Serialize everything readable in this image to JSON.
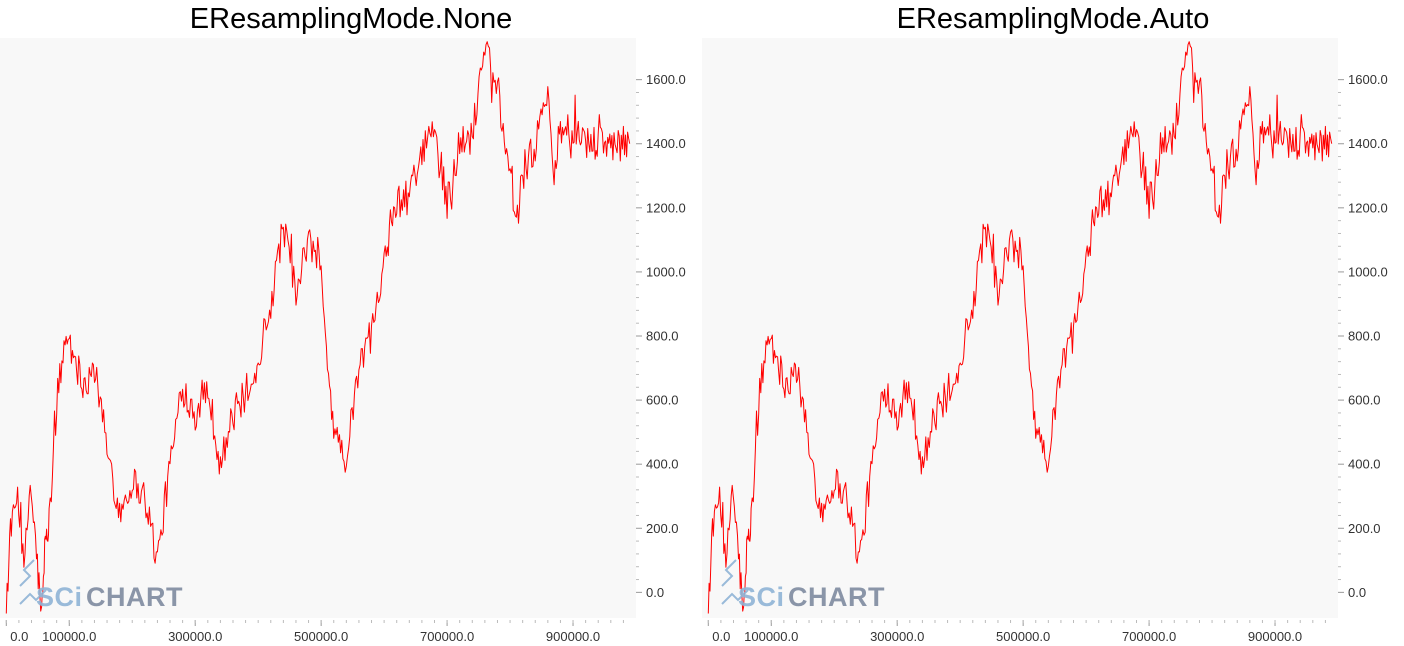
{
  "chart_data": [
    {
      "type": "line",
      "title": "EResamplingMode.None",
      "xlim": [
        -10000,
        1000000
      ],
      "ylim": [
        -80,
        1730
      ],
      "x_ticks": [
        "0.0",
        "100000.0",
        "300000.0",
        "500000.0",
        "700000.0",
        "900000.0"
      ],
      "x_tick_values": [
        0,
        100000,
        300000,
        500000,
        700000,
        900000
      ],
      "y_ticks": [
        "0.0",
        "200.0",
        "400.0",
        "600.0",
        "800.0",
        "1000.0",
        "1200.0",
        "1400.0",
        "1600.0"
      ],
      "y_tick_values": [
        0,
        200,
        400,
        600,
        800,
        1000,
        1200,
        1400,
        1600
      ],
      "series": [
        {
          "color": "#ff0000",
          "x": [
            0,
            8000,
            18000,
            28000,
            38000,
            48000,
            56000,
            62000,
            68000,
            80000,
            95000,
            110000,
            125000,
            140000,
            160000,
            180000,
            200000,
            220000,
            240000,
            260000,
            280000,
            300000,
            320000,
            340000,
            360000,
            380000,
            400000,
            420000,
            440000,
            460000,
            480000,
            500000,
            510000,
            520000,
            540000,
            560000,
            580000,
            600000,
            610000,
            620000,
            640000,
            660000,
            680000,
            700000,
            720000,
            740000,
            760000,
            780000,
            800000,
            810000,
            820000,
            840000,
            860000,
            870000,
            880000,
            890000,
            900000,
            915000,
            930000,
            945000,
            960000,
            975000,
            990000
          ],
          "y": [
            -20,
            180,
            310,
            60,
            340,
            120,
            -80,
            150,
            200,
            600,
            800,
            720,
            650,
            700,
            450,
            250,
            350,
            300,
            100,
            400,
            640,
            560,
            640,
            400,
            550,
            620,
            720,
            900,
            1150,
            930,
            1100,
            1000,
            700,
            520,
            410,
            700,
            820,
            1050,
            1150,
            1200,
            1240,
            1350,
            1460,
            1220,
            1400,
            1420,
            1730,
            1550,
            1350,
            1150,
            1300,
            1400,
            1570,
            1300,
            1450,
            1450,
            1440,
            1400,
            1400,
            1400,
            1400,
            1400,
            1400
          ]
        }
      ]
    },
    {
      "type": "line",
      "title": "EResamplingMode.Auto",
      "xlim": [
        -10000,
        1000000
      ],
      "ylim": [
        -80,
        1730
      ],
      "x_ticks": [
        "0.0",
        "100000.0",
        "300000.0",
        "500000.0",
        "700000.0",
        "900000.0"
      ],
      "x_tick_values": [
        0,
        100000,
        300000,
        500000,
        700000,
        900000
      ],
      "y_ticks": [
        "0.0",
        "200.0",
        "400.0",
        "600.0",
        "800.0",
        "1000.0",
        "1200.0",
        "1400.0",
        "1600.0"
      ],
      "y_tick_values": [
        0,
        200,
        400,
        600,
        800,
        1000,
        1200,
        1400,
        1600
      ],
      "series": [
        {
          "color": "#ff0000",
          "x": [
            0,
            8000,
            18000,
            28000,
            38000,
            48000,
            56000,
            62000,
            68000,
            80000,
            95000,
            110000,
            125000,
            140000,
            160000,
            180000,
            200000,
            220000,
            240000,
            260000,
            280000,
            300000,
            320000,
            340000,
            360000,
            380000,
            400000,
            420000,
            440000,
            460000,
            480000,
            500000,
            510000,
            520000,
            540000,
            560000,
            580000,
            600000,
            610000,
            620000,
            640000,
            660000,
            680000,
            700000,
            720000,
            740000,
            760000,
            780000,
            800000,
            810000,
            820000,
            840000,
            860000,
            870000,
            880000,
            890000,
            900000,
            915000,
            930000,
            945000,
            960000,
            975000,
            990000
          ],
          "y": [
            -20,
            180,
            310,
            60,
            340,
            120,
            -80,
            150,
            200,
            600,
            800,
            720,
            650,
            700,
            450,
            250,
            350,
            300,
            100,
            400,
            640,
            560,
            640,
            400,
            550,
            620,
            720,
            900,
            1150,
            930,
            1100,
            1000,
            700,
            520,
            410,
            700,
            820,
            1050,
            1150,
            1200,
            1240,
            1350,
            1460,
            1220,
            1400,
            1420,
            1730,
            1550,
            1350,
            1150,
            1300,
            1400,
            1570,
            1300,
            1450,
            1450,
            1440,
            1400,
            1400,
            1400,
            1400,
            1400,
            1400
          ]
        }
      ]
    }
  ],
  "logo": {
    "prefix": "SCi",
    "suffix": "CHART",
    "prefix_color": "#8fb4d6",
    "suffix_color": "#7f8ba0"
  },
  "colors": {
    "plot_bg": "#f8f8f8",
    "line": "#ff0000",
    "tick": "#bbbbbb"
  }
}
